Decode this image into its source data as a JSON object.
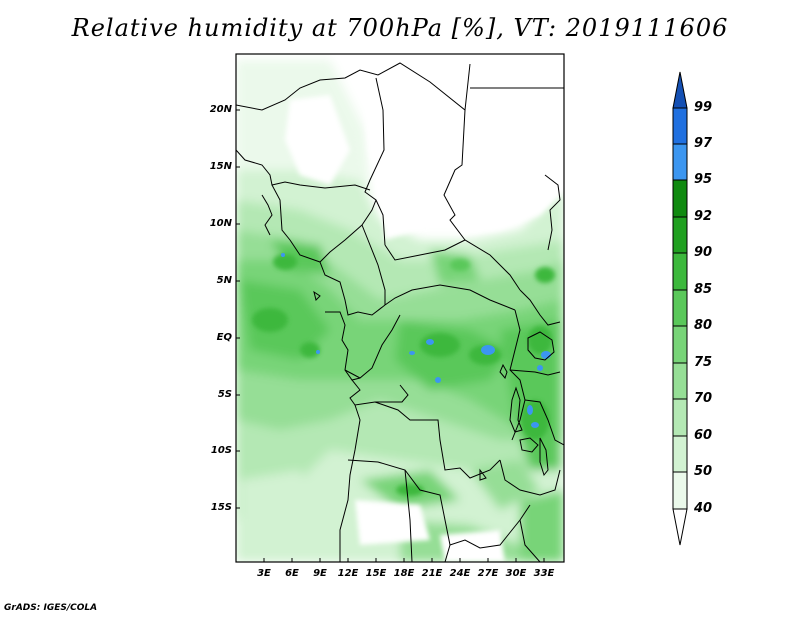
{
  "title": "Relative humidity at 700hPa [%], VT: 2019111606",
  "lat_ticks": [
    "20N",
    "15N",
    "10N",
    "5N",
    "EQ",
    "5S",
    "10S",
    "15S"
  ],
  "lon_ticks": [
    "3E",
    "6E",
    "9E",
    "12E",
    "15E",
    "18E",
    "21E",
    "24E",
    "27E",
    "30E",
    "33E"
  ],
  "colorbar": {
    "labels": [
      "40",
      "50",
      "60",
      "70",
      "75",
      "80",
      "85",
      "90",
      "92",
      "95",
      "97",
      "99"
    ],
    "colors": [
      "#ffffff",
      "#ebf9eb",
      "#d2f2d2",
      "#b4e8b4",
      "#96de96",
      "#78d478",
      "#5ac85a",
      "#3cb83c",
      "#20a020",
      "#108a10",
      "#3c96f0",
      "#2070e0",
      "#1450b4"
    ]
  },
  "credit": "GrADS: IGES/COLA"
}
